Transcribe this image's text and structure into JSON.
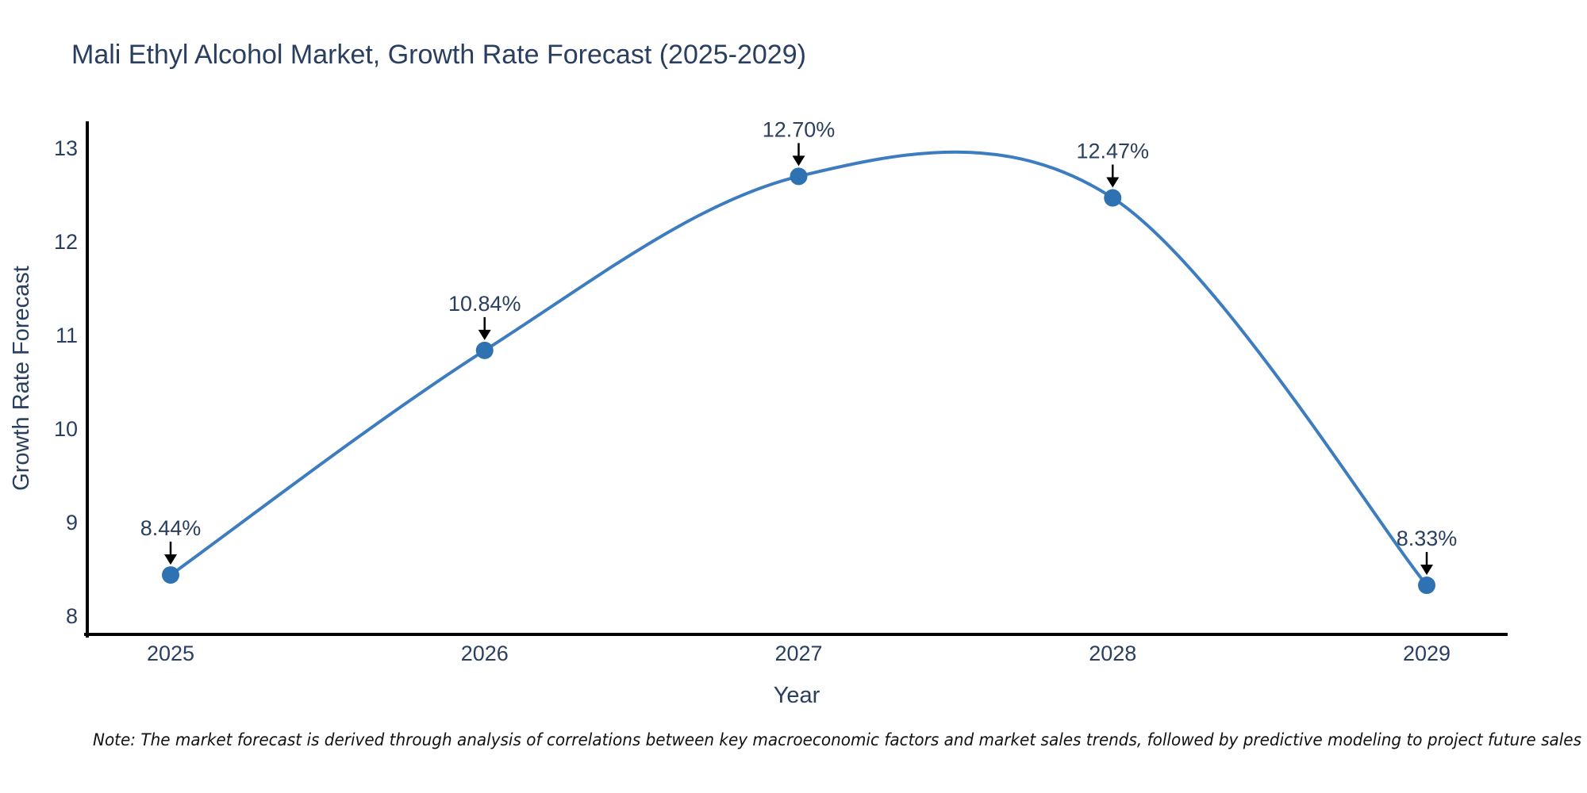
{
  "title": "Mali Ethyl Alcohol Market, Growth Rate Forecast (2025-2029)",
  "note": "Note: The market forecast is derived through analysis of correlations between key macroeconomic factors and market sales trends, followed by predictive modeling to project future sales",
  "colors": {
    "line": "#3d7dbf",
    "marker": "#2f72b2",
    "text": "#2a3f5f",
    "axis": "#000000",
    "arrow": "#000000",
    "note_text": "#111111",
    "background": "#ffffff"
  },
  "chart_data": {
    "type": "line",
    "title": "Mali Ethyl Alcohol Market, Growth Rate Forecast (2025-2029)",
    "xlabel": "Year",
    "ylabel": "Growth Rate Forecast",
    "x": [
      2025,
      2026,
      2027,
      2028,
      2029
    ],
    "values": [
      8.44,
      10.84,
      12.7,
      12.47,
      8.33
    ],
    "point_labels": [
      "8.44%",
      "10.84%",
      "12.70%",
      "12.47%",
      "8.33%"
    ],
    "xticks": [
      "2025",
      "2026",
      "2027",
      "2028",
      "2029"
    ],
    "yticks": [
      8,
      9,
      10,
      11,
      12,
      13
    ],
    "ylim": [
      7.8,
      13.3
    ],
    "line_shape": "spline",
    "markers": true,
    "grid": false,
    "legend": false,
    "annotations": "percentage value above each point with a downward black arrow"
  }
}
